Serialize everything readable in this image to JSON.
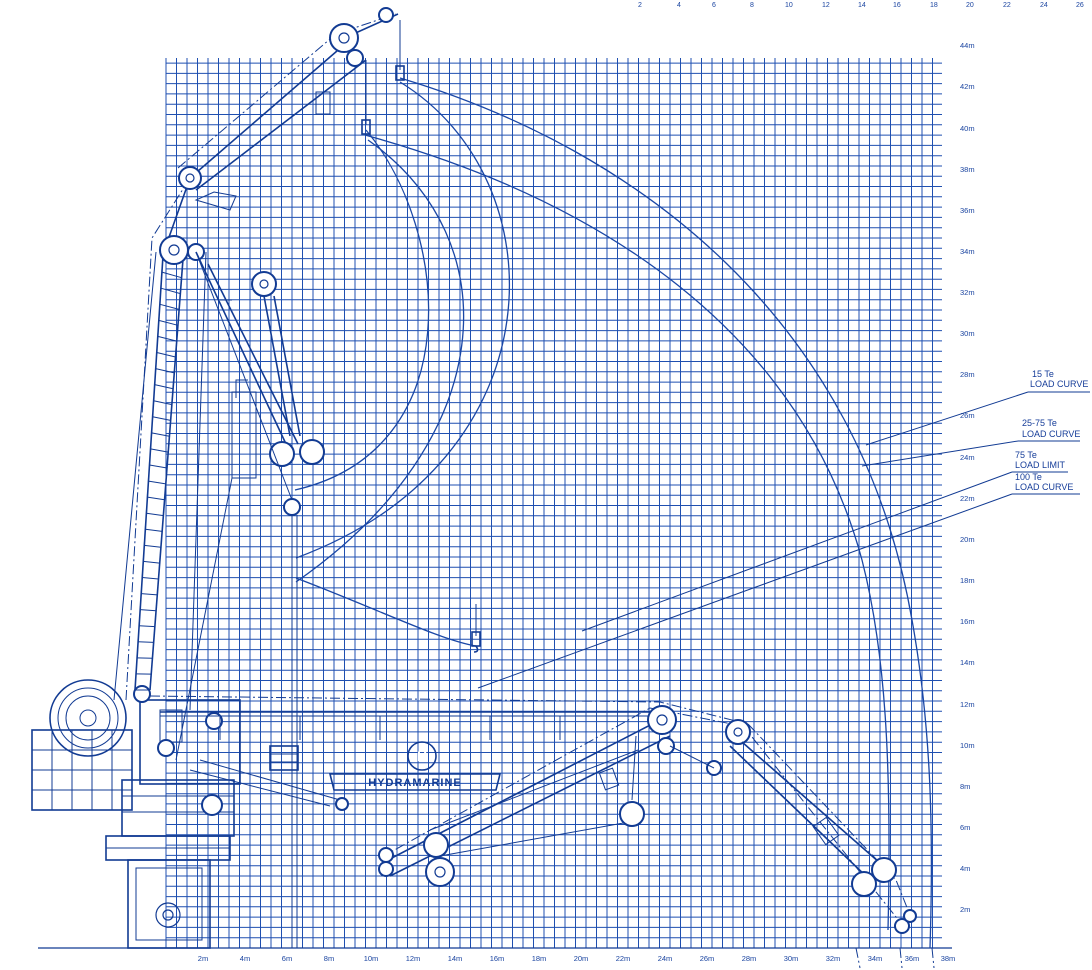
{
  "drawing": {
    "brand_logo_text": "HYDRAMARINE",
    "top_edge_numbers": [
      "2",
      "4",
      "6",
      "8",
      "10",
      "12",
      "14",
      "16",
      "18",
      "20",
      "22",
      "24",
      "26"
    ],
    "x_axis_labels": [
      "2m",
      "4m",
      "6m",
      "8m",
      "10m",
      "12m",
      "14m",
      "16m",
      "18m",
      "20m",
      "22m",
      "24m",
      "26m",
      "28m",
      "30m",
      "32m",
      "34m",
      "36m",
      "38m"
    ],
    "y_axis_labels": [
      "2m",
      "4m",
      "6m",
      "8m",
      "10m",
      "12m",
      "14m",
      "16m",
      "18m",
      "20m",
      "22m",
      "24m",
      "26m",
      "28m",
      "30m",
      "32m",
      "34m",
      "36m",
      "38m",
      "40m",
      "42m",
      "44m"
    ],
    "callouts": [
      {
        "line1": "15 Te",
        "line2": "LOAD CURVE"
      },
      {
        "line1": "25-75 Te",
        "line2": "LOAD CURVE"
      },
      {
        "line1": "75 Te",
        "line2": "LOAD LIMIT"
      },
      {
        "line1": "100 Te",
        "line2": "LOAD CURVE"
      }
    ],
    "colors": {
      "ink": "#123b93",
      "grid": "#1f4fb0",
      "background": "#ffffff"
    }
  }
}
